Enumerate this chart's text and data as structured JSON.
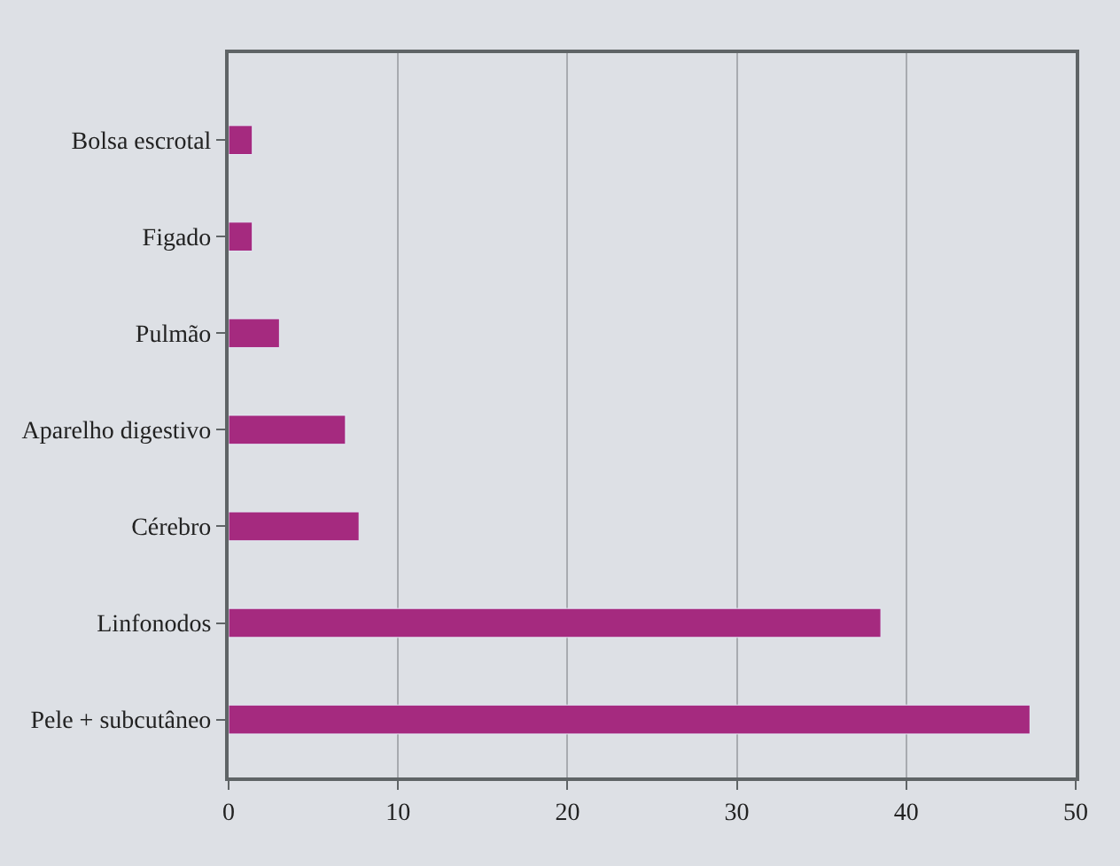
{
  "chart_data": {
    "type": "bar",
    "orientation": "horizontal",
    "categories": [
      "Bolsa escrotal",
      "Figado",
      "Pulmão",
      "Aparelho digestivo",
      "Cérebro",
      "Linfonodos",
      "Pele + subcutâneo"
    ],
    "values": [
      1.4,
      1.4,
      3.0,
      6.9,
      7.7,
      38.5,
      47.3
    ],
    "color": "#a52a7f",
    "xlim": [
      0,
      50
    ],
    "xticks": [
      0,
      10,
      20,
      30,
      40,
      50
    ],
    "grid": "x",
    "legend": false
  }
}
